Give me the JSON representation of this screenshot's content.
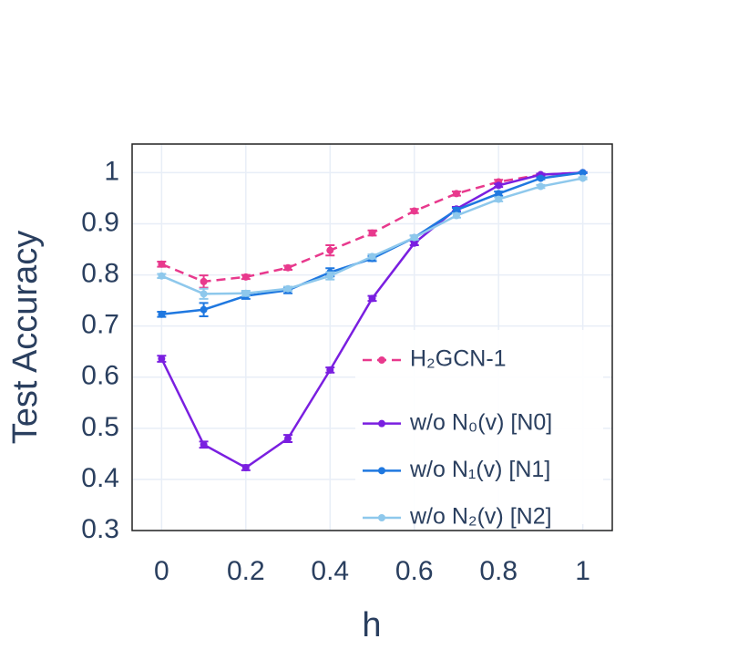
{
  "chart_data": {
    "type": "line",
    "x_label": "h",
    "y_label": "Test Accuracy",
    "x": [
      0,
      0.1,
      0.2,
      0.3,
      0.4,
      0.5,
      0.6,
      0.7,
      0.8,
      0.9,
      1
    ],
    "xlim": [
      -0.07,
      1.07
    ],
    "ylim": [
      0.3,
      1.056
    ],
    "xticks": [
      0,
      0.2,
      0.4,
      0.6,
      0.8,
      1
    ],
    "yticks": [
      0.3,
      0.4,
      0.5,
      0.6,
      0.7,
      0.8,
      0.9,
      1
    ],
    "grid": true,
    "legend": "bottom-right",
    "series": [
      {
        "name": "H₂GCN-1",
        "color": "#e8398d",
        "dash": "dash",
        "values": [
          0.821,
          0.787,
          0.796,
          0.814,
          0.848,
          0.882,
          0.925,
          0.959,
          0.982,
          0.996,
          1.0
        ],
        "errors": [
          0.005,
          0.012,
          0.004,
          0.004,
          0.01,
          0.005,
          0.004,
          0.004,
          0.004,
          0.002,
          0.001
        ]
      },
      {
        "name": "w/o N₀(v) [N0]",
        "color": "#7a1fe0",
        "values": [
          0.636,
          0.468,
          0.423,
          0.48,
          0.614,
          0.754,
          0.862,
          0.929,
          0.975,
          0.996,
          1.0
        ],
        "errors": [
          0.006,
          0.006,
          0.005,
          0.007,
          0.005,
          0.005,
          0.004,
          0.004,
          0.003,
          0.002,
          0.001
        ]
      },
      {
        "name": "w/o N₁(v) [N1]",
        "color": "#1f78e0",
        "values": [
          0.723,
          0.732,
          0.759,
          0.77,
          0.805,
          0.832,
          0.873,
          0.927,
          0.959,
          0.989,
          1.0
        ],
        "errors": [
          0.005,
          0.013,
          0.006,
          0.006,
          0.008,
          0.005,
          0.004,
          0.004,
          0.004,
          0.002,
          0.001
        ]
      },
      {
        "name": "w/o N₂(v) [N2]",
        "color": "#8ec8ec",
        "values": [
          0.798,
          0.763,
          0.764,
          0.773,
          0.798,
          0.836,
          0.873,
          0.916,
          0.948,
          0.973,
          0.989
        ],
        "errors": [
          0.004,
          0.01,
          0.005,
          0.004,
          0.007,
          0.004,
          0.004,
          0.004,
          0.004,
          0.003,
          0.002
        ]
      }
    ]
  }
}
